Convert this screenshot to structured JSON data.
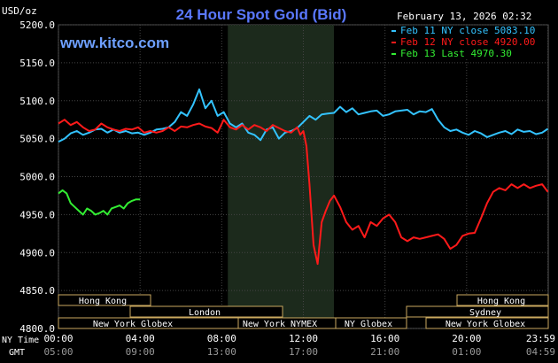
{
  "header": {
    "title": "24 Hour Spot Gold (Bid)",
    "date": "February 13, 2026 02:32",
    "site": "www.kitco.com",
    "unit": "USD/oz"
  },
  "legend": [
    {
      "label": "Feb 11 NY close 5083.10",
      "color": "#33c3ff"
    },
    {
      "label": "Feb 12 NY close 4920.00",
      "color": "#ff1a1a"
    },
    {
      "label": "Feb 13 Last 4970.30",
      "color": "#33ee33"
    }
  ],
  "markets": [
    {
      "label": "Hong Kong"
    },
    {
      "label": "London"
    },
    {
      "label": "New York Globex"
    },
    {
      "label": "New York NYMEX"
    },
    {
      "label": "NY Globex"
    },
    {
      "label": "Hong Kong"
    },
    {
      "label": "Sydney"
    },
    {
      "label": "New York Globex"
    }
  ],
  "time_rows": {
    "ny_label": "NY Time",
    "gmt_label": "GMT",
    "ny_ticks": [
      "00:00",
      "04:00",
      "08:00",
      "12:00",
      "16:00",
      "20:00",
      "23:59"
    ],
    "gmt_ticks": [
      "05:00",
      "09:00",
      "13:00",
      "17:00",
      "21:00",
      "01:00",
      "04:59"
    ]
  },
  "chart_data": {
    "type": "line",
    "title": "24 Hour Spot Gold (Bid)",
    "ylabel": "USD/oz",
    "xlabel": "NY Time",
    "ylim": [
      4800,
      5200
    ],
    "xlim_hours": [
      0,
      24
    ],
    "yticks": [
      "5200.0",
      "5150.0",
      "5100.0",
      "5050.0",
      "5000.0",
      "4950.0",
      "4900.0",
      "4850.0",
      "4800.0"
    ],
    "ytick_values": [
      5200,
      5150,
      5100,
      5050,
      5000,
      4950,
      4900,
      4850,
      4800
    ],
    "xtick_hours": [
      0,
      4,
      8,
      12,
      16,
      20,
      23.98
    ],
    "grid": true,
    "highlight_hours": [
      8.3,
      13.5
    ],
    "legend_position": "top-right",
    "series": [
      {
        "name": "Feb 11 NY close 5083.10",
        "color": "#33c3ff",
        "x": [
          0,
          0.3,
          0.6,
          0.9,
          1.2,
          1.5,
          1.8,
          2.1,
          2.4,
          2.7,
          3.0,
          3.3,
          3.6,
          3.9,
          4.2,
          4.5,
          4.8,
          5.1,
          5.4,
          5.7,
          6.0,
          6.3,
          6.6,
          6.9,
          7.2,
          7.5,
          7.8,
          8.1,
          8.4,
          8.7,
          9.0,
          9.3,
          9.6,
          9.9,
          10.2,
          10.5,
          10.8,
          11.1,
          11.4,
          11.7,
          12.0,
          12.3,
          12.6,
          12.9,
          13.2,
          13.5,
          13.8,
          14.1,
          14.4,
          14.7,
          15.0,
          15.3,
          15.6,
          15.9,
          16.2,
          16.5,
          16.8,
          17.1,
          17.4,
          17.7,
          18.0,
          18.3,
          18.6,
          18.9,
          19.2,
          19.5,
          19.8,
          20.1,
          20.4,
          20.7,
          21.0,
          21.3,
          21.6,
          21.9,
          22.2,
          22.5,
          22.8,
          23.1,
          23.4,
          23.7,
          23.98
        ],
        "values": [
          5046,
          5050,
          5057,
          5060,
          5055,
          5058,
          5062,
          5063,
          5058,
          5062,
          5058,
          5060,
          5057,
          5058,
          5055,
          5058,
          5062,
          5063,
          5065,
          5072,
          5085,
          5080,
          5095,
          5115,
          5090,
          5100,
          5080,
          5085,
          5070,
          5065,
          5070,
          5058,
          5055,
          5048,
          5062,
          5065,
          5050,
          5058,
          5060,
          5064,
          5072,
          5080,
          5075,
          5082,
          5083,
          5084,
          5092,
          5085,
          5090,
          5082,
          5084,
          5086,
          5087,
          5080,
          5082,
          5086,
          5087,
          5088,
          5082,
          5086,
          5085,
          5089,
          5075,
          5065,
          5060,
          5062,
          5058,
          5055,
          5060,
          5057,
          5052,
          5055,
          5058,
          5060,
          5056,
          5062,
          5059,
          5060,
          5056,
          5058,
          5063
        ]
      },
      {
        "name": "Feb 12 NY close 4920.00",
        "color": "#ff1a1a",
        "x": [
          0,
          0.3,
          0.6,
          0.9,
          1.2,
          1.5,
          1.8,
          2.1,
          2.4,
          2.7,
          3.0,
          3.3,
          3.6,
          3.9,
          4.2,
          4.5,
          4.8,
          5.1,
          5.4,
          5.7,
          6.0,
          6.3,
          6.6,
          6.9,
          7.2,
          7.5,
          7.8,
          8.1,
          8.4,
          8.7,
          9.0,
          9.3,
          9.6,
          9.9,
          10.2,
          10.5,
          10.8,
          11.1,
          11.4,
          11.7,
          11.85,
          12.0,
          12.15,
          12.3,
          12.5,
          12.7,
          12.9,
          13.1,
          13.3,
          13.5,
          13.8,
          14.1,
          14.4,
          14.7,
          15.0,
          15.3,
          15.6,
          15.9,
          16.2,
          16.5,
          16.8,
          17.1,
          17.4,
          17.7,
          18.0,
          18.3,
          18.6,
          18.9,
          19.2,
          19.5,
          19.8,
          20.1,
          20.4,
          20.7,
          21.0,
          21.3,
          21.6,
          21.9,
          22.2,
          22.5,
          22.8,
          23.1,
          23.4,
          23.7,
          23.98
        ],
        "values": [
          5070,
          5075,
          5068,
          5072,
          5065,
          5060,
          5062,
          5070,
          5065,
          5062,
          5060,
          5063,
          5062,
          5065,
          5058,
          5060,
          5058,
          5060,
          5065,
          5060,
          5066,
          5065,
          5068,
          5070,
          5066,
          5064,
          5058,
          5075,
          5065,
          5062,
          5068,
          5062,
          5068,
          5065,
          5060,
          5068,
          5064,
          5060,
          5058,
          5065,
          5055,
          5060,
          5040,
          4990,
          4910,
          4885,
          4940,
          4955,
          4968,
          4975,
          4960,
          4940,
          4930,
          4935,
          4920,
          4940,
          4935,
          4945,
          4950,
          4940,
          4920,
          4915,
          4920,
          4918,
          4920,
          4922,
          4924,
          4918,
          4905,
          4910,
          4922,
          4925,
          4926,
          4945,
          4965,
          4980,
          4985,
          4982,
          4990,
          4985,
          4990,
          4985,
          4988,
          4990,
          4980
        ]
      },
      {
        "name": "Feb 13 Last 4970.30",
        "color": "#33ee33",
        "x": [
          0,
          0.2,
          0.4,
          0.6,
          0.8,
          1.0,
          1.2,
          1.4,
          1.6,
          1.8,
          2.0,
          2.2,
          2.4,
          2.6,
          2.8,
          3.0,
          3.2,
          3.4,
          3.6,
          3.8,
          4.0
        ],
        "values": [
          4978,
          4982,
          4978,
          4965,
          4960,
          4955,
          4950,
          4958,
          4955,
          4950,
          4952,
          4955,
          4950,
          4958,
          4960,
          4962,
          4958,
          4965,
          4968,
          4970,
          4970
        ]
      }
    ]
  }
}
